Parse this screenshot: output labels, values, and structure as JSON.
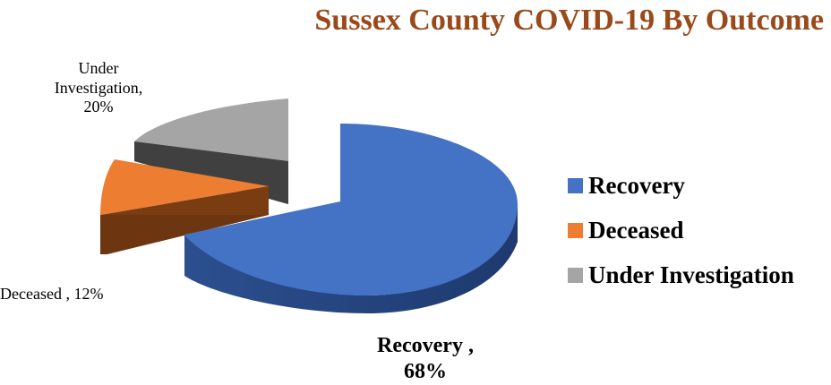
{
  "chart_data": {
    "type": "pie",
    "title": "Sussex County COVID-19 By Outcome",
    "slices": [
      {
        "name": "Recovery",
        "value": 68,
        "color": "#4472c4",
        "label_name": "Recovery ,",
        "label_value": "68%"
      },
      {
        "name": "Deceased",
        "value": 12,
        "color": "#ed7d31",
        "label_name": "Deceased ,",
        "label_value": "12%"
      },
      {
        "name": "Under Investigation",
        "value": 20,
        "color": "#a5a5a5",
        "label_name": "Under Investigation,",
        "label_value": "20%"
      }
    ],
    "legend_position": "right",
    "style": "3d-exploded"
  }
}
